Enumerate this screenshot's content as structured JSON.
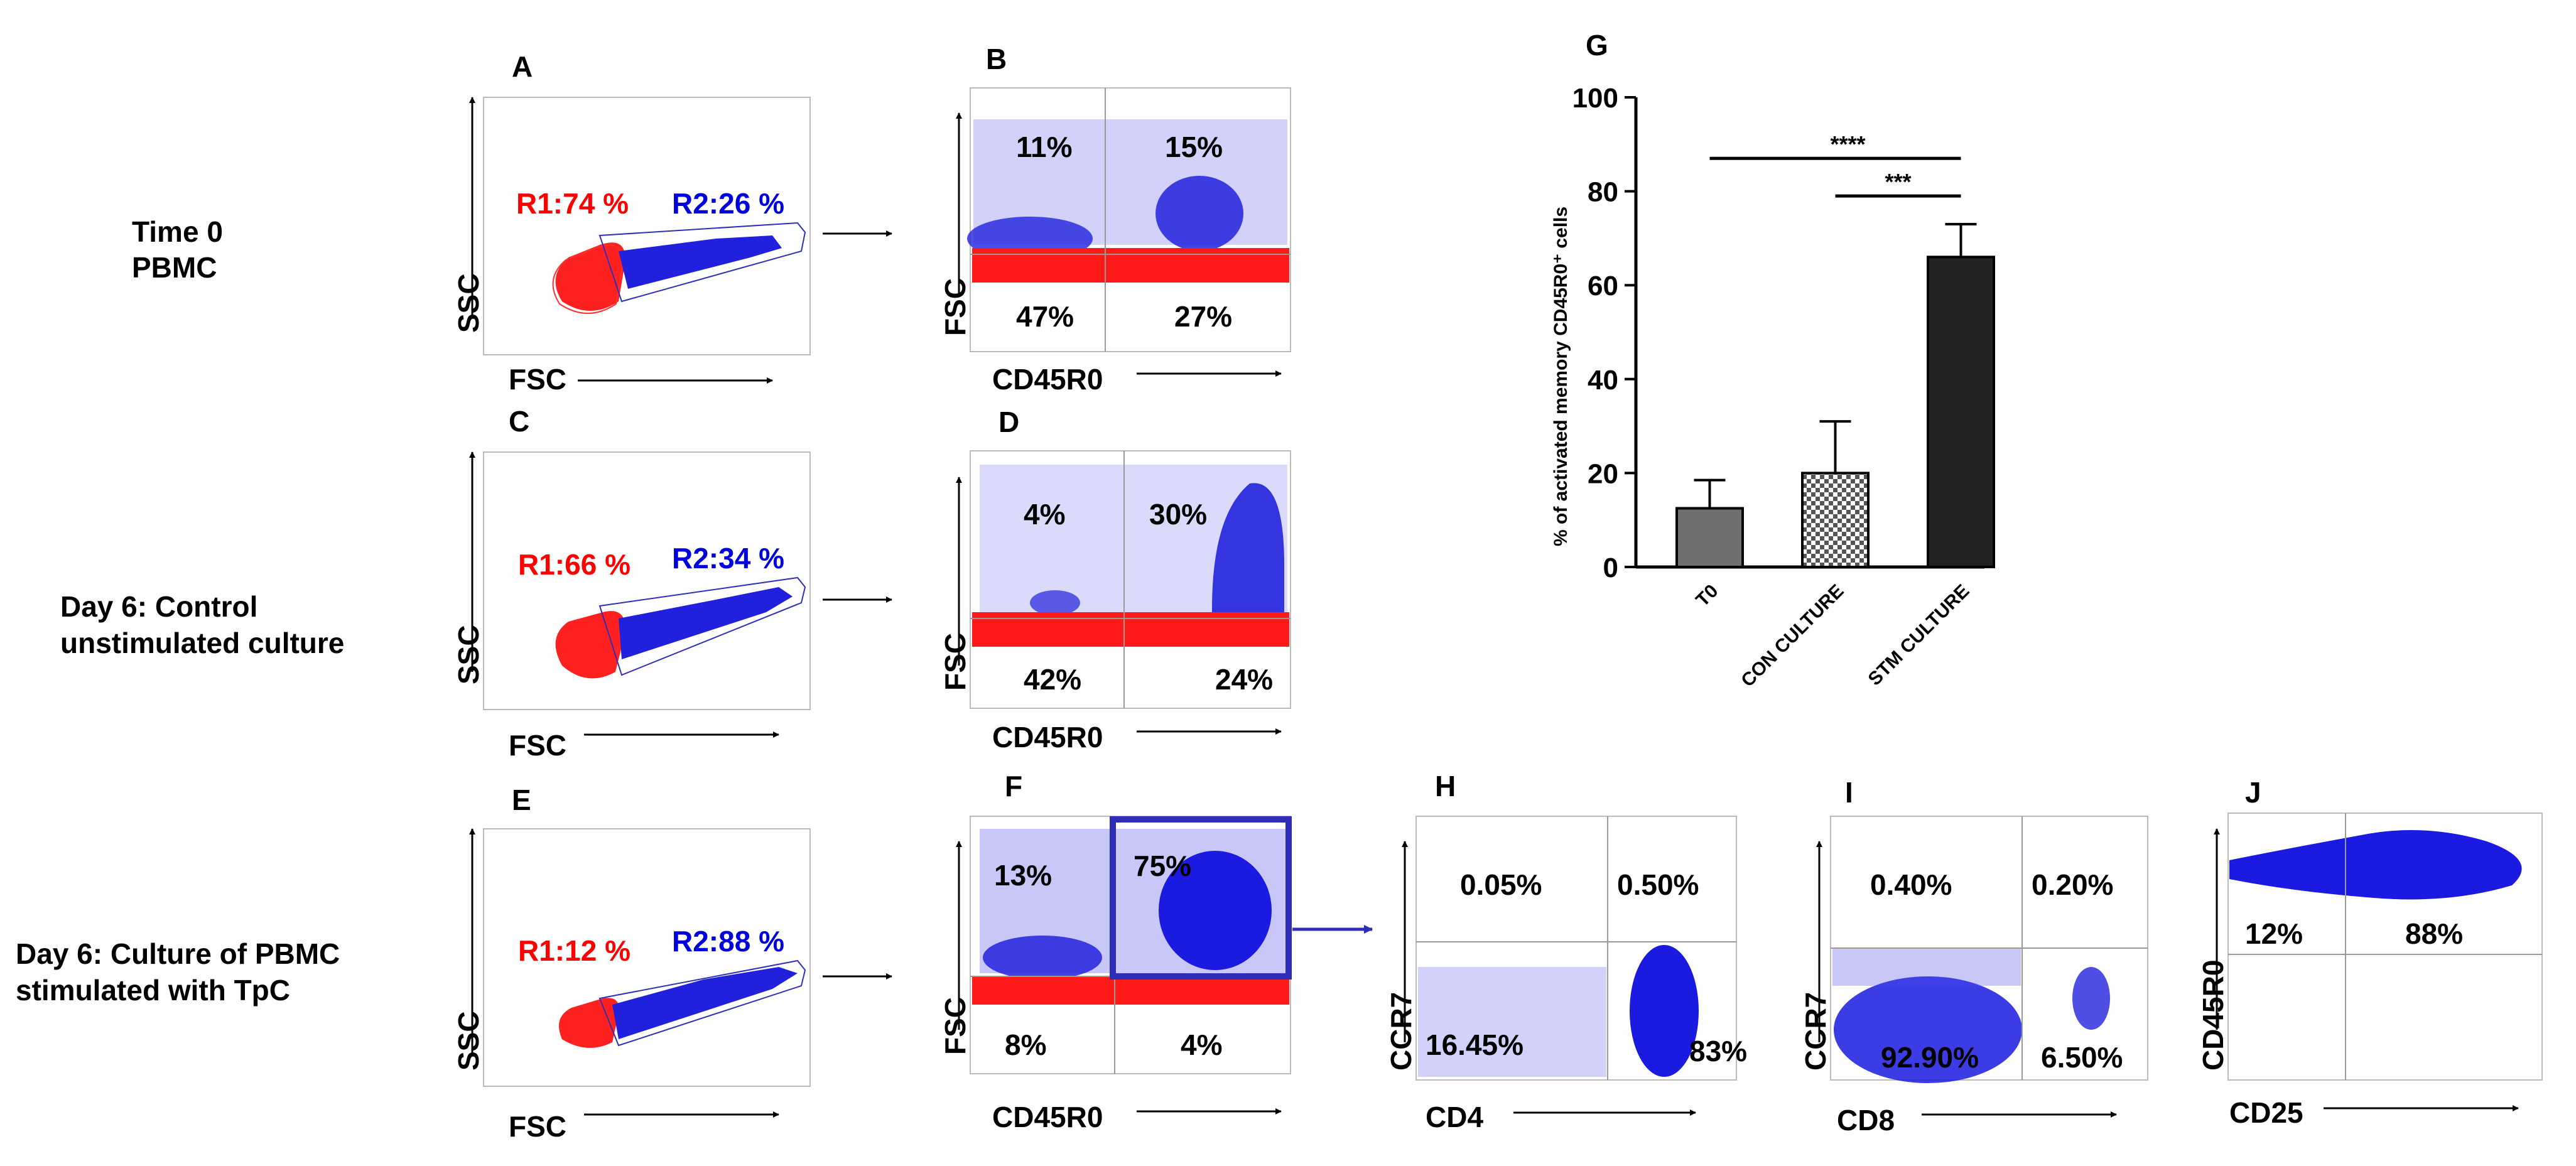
{
  "rows": [
    {
      "lines": [
        "Time 0",
        "PBMC"
      ]
    },
    {
      "lines": [
        "Day 6: Control",
        "unstimulated culture"
      ]
    },
    {
      "lines": [
        "Day 6: Culture of PBMC",
        "stimulated with TpC"
      ]
    }
  ],
  "scatter_panels": [
    {
      "letter": "A",
      "r1": "R1:74 %",
      "r2": "R2:26 %",
      "xlabel": "FSC",
      "ylabel": "SSC"
    },
    {
      "letter": "C",
      "r1": "R1:66 %",
      "r2": "R2:34 %",
      "xlabel": "FSC",
      "ylabel": "SSC"
    },
    {
      "letter": "E",
      "r1": "R1:12 %",
      "r2": "R2:88 %",
      "xlabel": "FSC",
      "ylabel": "SSC"
    }
  ],
  "quad_panels": [
    {
      "letter": "B",
      "xlabel": "CD45R0",
      "ylabel": "FSC",
      "ul": "11%",
      "ur": "15%",
      "ll": "47%",
      "lr": "27%"
    },
    {
      "letter": "D",
      "xlabel": "CD45R0",
      "ylabel": "FSC",
      "ul": "4%",
      "ur": "30%",
      "ll": "42%",
      "lr": "24%"
    },
    {
      "letter": "F",
      "xlabel": "CD45R0",
      "ylabel": "FSC",
      "ul": "13%",
      "ur": "75%",
      "ll": "8%",
      "lr": "4%"
    },
    {
      "letter": "H",
      "xlabel": "CD4",
      "ylabel": "CCR7",
      "ul": "0.05%",
      "ur": "0.50%",
      "ll": "16.45%",
      "lr": "83%"
    },
    {
      "letter": "I",
      "xlabel": "CD8",
      "ylabel": "CCR7",
      "ul": "0.40%",
      "ur": "0.20%",
      "ll": "92.90%",
      "lr": "6.50%"
    },
    {
      "letter": "J",
      "xlabel": "CD25",
      "ylabel": "CD45R0",
      "ul": "12%",
      "ur": "88%"
    }
  ],
  "colors": {
    "r1": "#ff0000",
    "r2": "#0000dd",
    "gate": "#2e2eb8",
    "text": "#000000"
  },
  "chart_data": {
    "type": "bar",
    "panel_letter": "G",
    "categories": [
      "T0",
      "CON CULTURE",
      "STM CULTURE"
    ],
    "values": [
      12.5,
      20,
      66
    ],
    "errors": [
      6,
      11,
      7
    ],
    "fills": [
      "#6f6f6f",
      "checker",
      "#222222"
    ],
    "ylabel": "% of activated memory CD45R0⁺ cells",
    "ylim": [
      0,
      100
    ],
    "yticks": [
      "0",
      "20",
      "40",
      "60",
      "80",
      "100"
    ],
    "significance": [
      {
        "from": 0,
        "to": 2,
        "label": "****"
      },
      {
        "from": 1,
        "to": 2,
        "label": "***"
      }
    ]
  }
}
